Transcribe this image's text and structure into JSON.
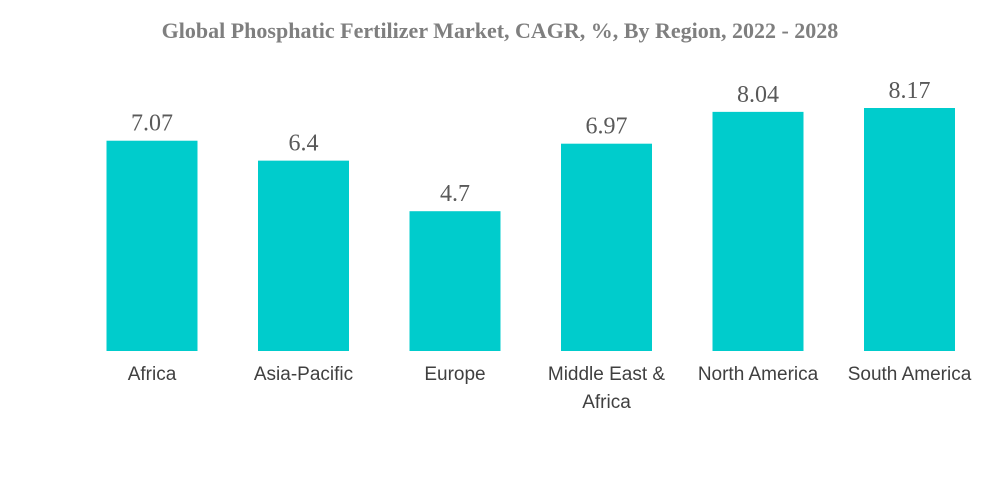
{
  "chart_data": {
    "type": "bar",
    "title": "Global Phosphatic Fertilizer Market, CAGR, %, By Region, 2022 - 2028",
    "categories": [
      "Africa",
      "Asia-Pacific",
      "Europe",
      "Middle East & Africa",
      "North America",
      "South America"
    ],
    "category_lines": [
      [
        "Africa"
      ],
      [
        "Asia-Pacific"
      ],
      [
        "Europe"
      ],
      [
        "Middle East &",
        "Africa"
      ],
      [
        "North America"
      ],
      [
        "South America"
      ]
    ],
    "values": [
      7.07,
      6.4,
      4.7,
      6.97,
      8.04,
      8.17
    ],
    "value_labels": [
      "7.07",
      "6.4",
      "4.7",
      "6.97",
      "8.04",
      "8.17"
    ],
    "xlabel": "",
    "ylabel": "",
    "ylim": [
      0,
      8.17
    ],
    "grid": false,
    "legend": "none",
    "bar_color": "#00CCCC"
  }
}
